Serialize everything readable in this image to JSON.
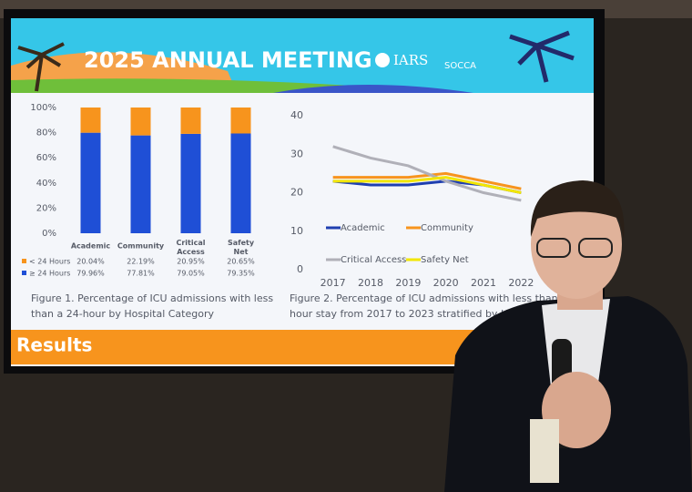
{
  "slide": {
    "title": "2025 ANNUAL  MEETING",
    "logos": [
      "IARS",
      "SOCCA"
    ],
    "section": "Results"
  },
  "chart_data": [
    {
      "type": "bar",
      "stacked": true,
      "caption": [
        "Figure 1. Percentage of ICU admissions with less",
        "than a 24-hour by Hospital Category"
      ],
      "categories": [
        "Academic",
        "Community",
        "Critical Access",
        "Safety Net"
      ],
      "series": [
        {
          "name": "< 24 Hours",
          "color": "#f7941d",
          "values": [
            20.04,
            22.19,
            20.95,
            20.65
          ],
          "value_labels": [
            "20.04%",
            "22.19%",
            "20.95%",
            "20.65%"
          ]
        },
        {
          "name": "≥ 24 Hours",
          "color": "#1f4fd6",
          "values": [
            79.96,
            77.81,
            79.05,
            79.35
          ],
          "value_labels": [
            "79.96%",
            "77.81%",
            "79.05%",
            "79.35%"
          ]
        }
      ],
      "ylim": [
        0,
        100
      ],
      "yticks": [
        {
          "value": 0,
          "label": "0%"
        },
        {
          "value": 20,
          "label": "20%"
        },
        {
          "value": 40,
          "label": "40%"
        },
        {
          "value": 60,
          "label": "60%"
        },
        {
          "value": 80,
          "label": "80%"
        },
        {
          "value": 100,
          "label": "100%"
        }
      ]
    },
    {
      "type": "line",
      "caption": [
        "Figure 2. Percentage of ICU admissions with less than a",
        "hour stay from 2017 to 2023 stratified by Hospital C"
      ],
      "x": [
        2017,
        2018,
        2019,
        2020,
        2021,
        2022
      ],
      "xlim": [
        2016.5,
        2022.5
      ],
      "xticks": [
        2017,
        2018,
        2019,
        2020,
        2021,
        2022
      ],
      "ylim": [
        0,
        40
      ],
      "yticks": [
        0,
        10,
        20,
        30,
        40
      ],
      "series": [
        {
          "name": "Academic",
          "color": "#1f3fb0",
          "values": [
            23,
            22,
            22,
            23,
            22,
            20
          ]
        },
        {
          "name": "Community",
          "color": "#f7941d",
          "values": [
            24,
            24,
            24,
            25,
            23,
            21
          ]
        },
        {
          "name": "Critical  Access",
          "color": "#b0b0b8",
          "values": [
            32,
            29,
            27,
            23,
            20,
            18
          ]
        },
        {
          "name": "Safety Net",
          "color": "#f2e600",
          "values": [
            23,
            23,
            23,
            24,
            22,
            20
          ]
        }
      ]
    }
  ]
}
